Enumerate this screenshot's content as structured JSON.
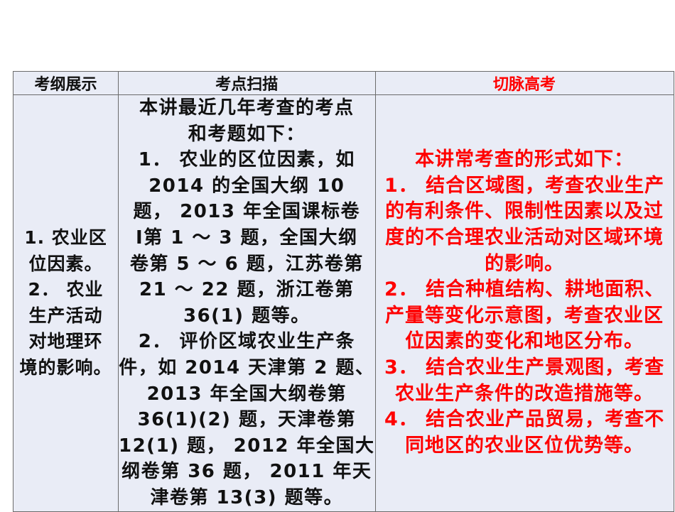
{
  "table": {
    "headers": [
      "考纲展示",
      "考点扫描",
      "切脉高考"
    ],
    "header_colors": [
      "#111111",
      "#111111",
      "#ff0000"
    ],
    "col1_lines": [
      "1. 农业区",
      "位因素。",
      "2． 农业",
      "生产活动",
      "对地理环",
      "境的影响。"
    ],
    "col2_lines": [
      "本讲最近几年考查的考点",
      "和考题如下：",
      "1． 农业的区位因素，如",
      "2014 的全国大纲 10",
      "题， 2013 年全国课标卷",
      "Ⅰ第 1 ～ 3 题，全国大纲",
      "卷第 5 ～ 6 题，江苏卷第",
      "21 ～ 22 题，浙江卷第",
      "36(1) 题等。",
      "2． 评价区域农业生产条",
      "件，如 2014 天津第 2 题、",
      "2013 年全国大纲卷第",
      "36(1)(2) 题，天津卷第",
      "12(1) 题， 2012 年全国大",
      "纲卷第 36 题， 2011 年天",
      "津卷第 13(3) 题等。"
    ],
    "col3_lines": [
      "本讲常考查的形式如下：",
      "1． 结合区域图，考查农业生产",
      "的有利条件、限制性因素以及过",
      "度的不合理农业活动对区域环境",
      "的影响。",
      "2． 结合种植结构、耕地面积、",
      "产量等变化示意图，考查农业区",
      "位因素的变化和地区分布。",
      "3． 结合农业生产景观图，考查",
      "农业生产条件的改造措施等。",
      "4． 结合农业产品贸易，考查不",
      "同地区的农业区位优势等。"
    ],
    "accent_color": "#ff0000"
  }
}
